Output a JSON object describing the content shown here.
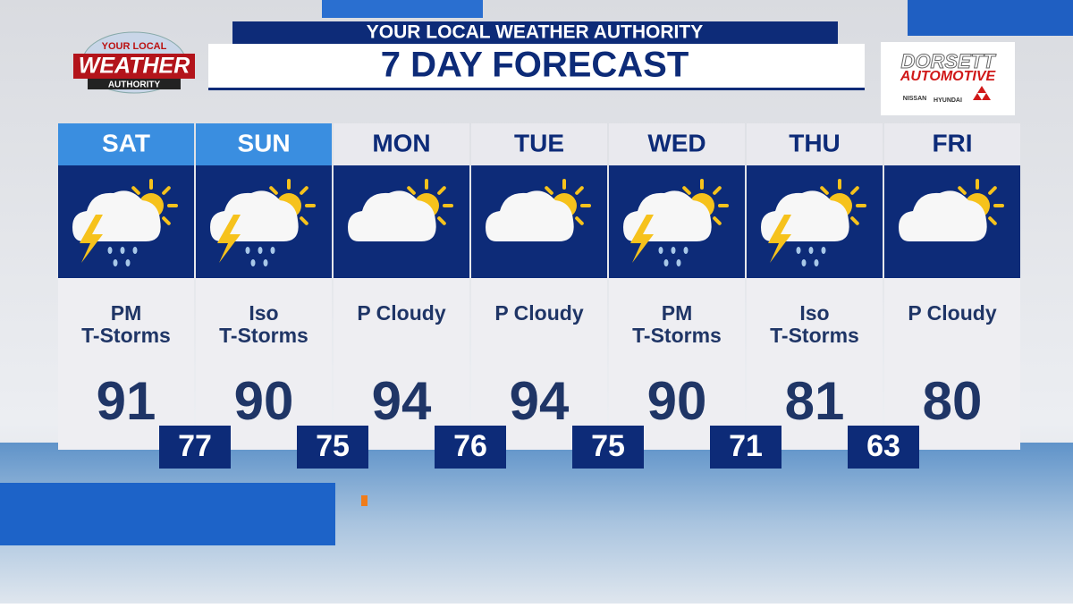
{
  "header": {
    "subtitle": "YOUR LOCAL WEATHER AUTHORITY",
    "title": "7 DAY FORECAST"
  },
  "station_logo": {
    "top": "YOUR LOCAL",
    "main": "WEATHER",
    "bottom": "AUTHORITY"
  },
  "sponsor": {
    "name": "DORSETT",
    "tagline": "AUTOMOTIVE",
    "brands": [
      "NISSAN",
      "HYUNDAI"
    ]
  },
  "days": [
    {
      "day": "SAT",
      "condition": [
        "PM",
        "T-Storms"
      ],
      "high": 91,
      "low": 77
    },
    {
      "day": "SUN",
      "condition": [
        "Iso",
        "T-Storms"
      ],
      "high": 90,
      "low": 75
    },
    {
      "day": "MON",
      "condition": [
        "P Cloudy"
      ],
      "high": 94,
      "low": 76
    },
    {
      "day": "TUE",
      "condition": [
        "P Cloudy"
      ],
      "high": 94,
      "low": 75
    },
    {
      "day": "WED",
      "condition": [
        "PM",
        "T-Storms"
      ],
      "high": 90,
      "low": 71
    },
    {
      "day": "THU",
      "condition": [
        "Iso",
        "T-Storms"
      ],
      "high": 81,
      "low": 63
    },
    {
      "day": "FRI",
      "condition": [
        "P Cloudy"
      ],
      "high": 80
    }
  ]
}
